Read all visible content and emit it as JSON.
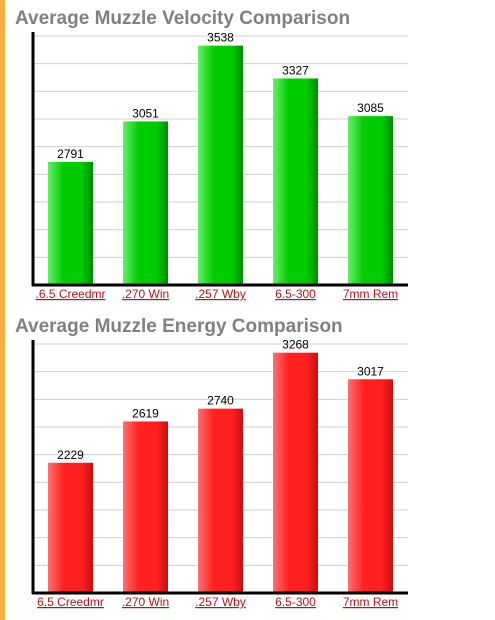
{
  "page": {
    "accent_color": "#f5b041"
  },
  "chart_data": [
    {
      "type": "bar",
      "title": "Average Muzzle Velocity Comparison",
      "categories": [
        ".6.5 Creedmr",
        ".270 Win",
        ".257 Wby",
        "6.5-300",
        "7mm Rem"
      ],
      "values": [
        2791,
        3051,
        3538,
        3327,
        3085
      ],
      "value_labels": [
        "2791",
        "3051",
        "3538",
        "3327",
        "3085"
      ],
      "ylim": [
        2000,
        3600
      ],
      "grid": true,
      "bar_color": "#00cc00",
      "bar_color_dark": "#008a00",
      "bar_color_light": "#66f066",
      "category_link_color": "#b81414"
    },
    {
      "type": "bar",
      "title": "Average Muzzle Energy Comparison",
      "categories": [
        "6.5 Creedmr",
        ".270 Win",
        ".257 Wby",
        "6.5-300",
        "7mm Rem"
      ],
      "values": [
        2229,
        2619,
        2740,
        3268,
        3017
      ],
      "value_labels": [
        "2229",
        "2619",
        "2740",
        "3268",
        "3017"
      ],
      "ylim": [
        1000,
        3350
      ],
      "grid": true,
      "bar_color": "#ff2020",
      "bar_color_dark": "#c41010",
      "bar_color_light": "#ff7070",
      "category_link_color": "#b81414"
    }
  ]
}
